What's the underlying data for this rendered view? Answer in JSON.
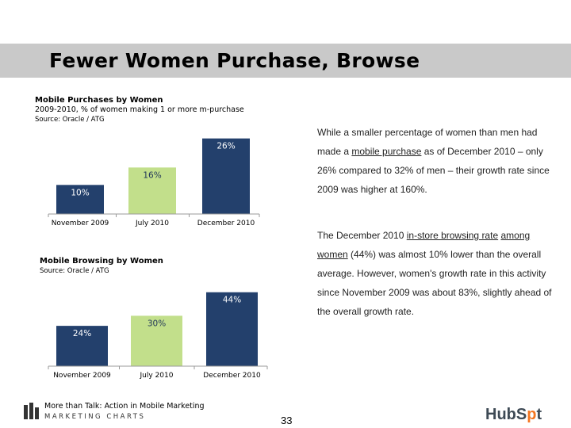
{
  "slide": {
    "title": "Fewer Women Purchase, Browse",
    "page_number": "33"
  },
  "chart_data": [
    {
      "type": "bar",
      "title": "Mobile Purchases by Women",
      "subtitle": "2009-2010, % of women making 1 or more m-purchase",
      "source": "Source: Oracle / ATG",
      "categories": [
        "November 2009",
        "July 2010",
        "December 2010"
      ],
      "values": [
        10,
        16,
        26
      ],
      "data_labels": [
        "10%",
        "16%",
        "26%"
      ],
      "colors": [
        "#23406c",
        "#c2df8b",
        "#23406c"
      ],
      "ylim": [
        0,
        30
      ],
      "grid": false
    },
    {
      "type": "bar",
      "title": "Mobile Browsing by Women",
      "source": "Source: Oracle / ATG",
      "categories": [
        "November 2009",
        "July 2010",
        "December 2010"
      ],
      "values": [
        24,
        30,
        44
      ],
      "data_labels": [
        "24%",
        "30%",
        "44%"
      ],
      "colors": [
        "#23406c",
        "#c2df8b",
        "#23406c"
      ],
      "ylim": [
        0,
        50
      ],
      "grid": false
    }
  ],
  "text": {
    "p1_a": "While a smaller percentage of women than men had made a ",
    "p1_link": "mobile purchase",
    "p1_b": " as of December 2010 – only 26% compared to 32% of men – their growth rate since 2009 was higher at 160%.",
    "p2_a": "The December 2010 ",
    "p2_link1": "in-store browsing rate",
    "p2_b": " ",
    "p2_link2": "among women",
    "p2_c": " (44%) was almost 10% lower than the overall average. However, women's growth rate in this activity since November 2009 was about 83%, slightly ahead of the overall growth rate."
  },
  "footer": {
    "tagline": "More than Talk: Action in Mobile Marketing",
    "brand": "MARKETING CHARTS",
    "logo_left": "bars-logo-icon",
    "logo_right_text": "HubSpot",
    "logo_right_a": "HubS",
    "logo_right_o": "p",
    "logo_right_b": "t"
  }
}
